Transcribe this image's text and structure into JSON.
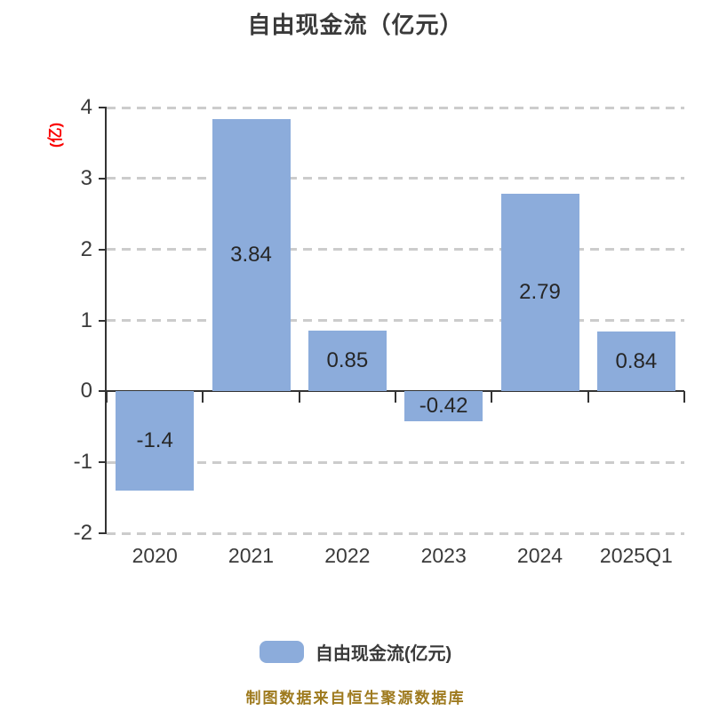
{
  "title": "自由现金流（亿元）",
  "y_axis_name": "(亿)",
  "legend": {
    "label": "自由现金流(亿元)",
    "swatch_color": "#8CACDB"
  },
  "footer": "制图数据来自恒生聚源数据库",
  "chart_data": {
    "type": "bar",
    "title": "自由现金流（亿元）",
    "categories": [
      "2020",
      "2021",
      "2022",
      "2023",
      "2024",
      "2025Q1"
    ],
    "values": [
      -1.4,
      3.84,
      0.85,
      -0.42,
      2.79,
      0.84
    ],
    "value_labels": [
      "-1.4",
      "3.84",
      "0.85",
      "-0.42",
      "2.79",
      "0.84"
    ],
    "xlabel": "",
    "ylabel": "(亿)",
    "ylim": [
      -2,
      4
    ],
    "yticks": [
      4,
      3,
      2,
      1,
      0,
      -1,
      -2
    ],
    "grid": "dashed-horizontal",
    "legend_position": "bottom",
    "bar_color": "#8CACDB"
  },
  "colors": {
    "bar": "#8CACDB",
    "axis": "#333333",
    "grid": "#CCCCCC",
    "title_text": "#3A3A3A",
    "axis_name_red": "#FA0000",
    "footer_gold": "#9E7A1E"
  }
}
